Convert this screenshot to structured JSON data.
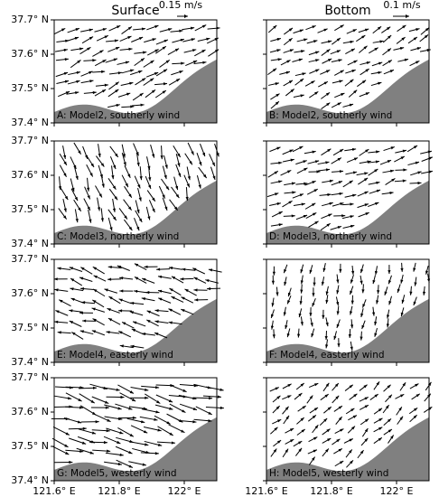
{
  "columns": [
    "Surface",
    "Bottom"
  ],
  "scale_labels": [
    "0.15 m/s",
    "0.1 m/s"
  ],
  "ylim": [
    37.4,
    37.7
  ],
  "yticks": [
    {
      "value": 37.4,
      "label": "37.4° N"
    },
    {
      "value": 37.5,
      "label": "37.5° N"
    },
    {
      "value": 37.6,
      "label": "37.6° N"
    },
    {
      "value": 37.7,
      "label": "37.7° N"
    }
  ],
  "xlim": [
    121.6,
    122.1
  ],
  "xticks": [
    {
      "value": 121.6,
      "label": "121.6° E"
    },
    {
      "value": 121.8,
      "label": "121.8° E"
    },
    {
      "value": 122.0,
      "label": "122° E"
    }
  ],
  "panels": [
    {
      "label": "A: Model2, southerly wind"
    },
    {
      "label": "B: Model2, southerly wind"
    },
    {
      "label": "C: Model3, northerly wind"
    },
    {
      "label": "D: Model3, northerly wind"
    },
    {
      "label": "E: Model4, easterly wind"
    },
    {
      "label": "F: Model4, easterly wind"
    },
    {
      "label": "G: Model5, westerly wind"
    },
    {
      "label": "H: Model5, westerly wind"
    }
  ]
}
